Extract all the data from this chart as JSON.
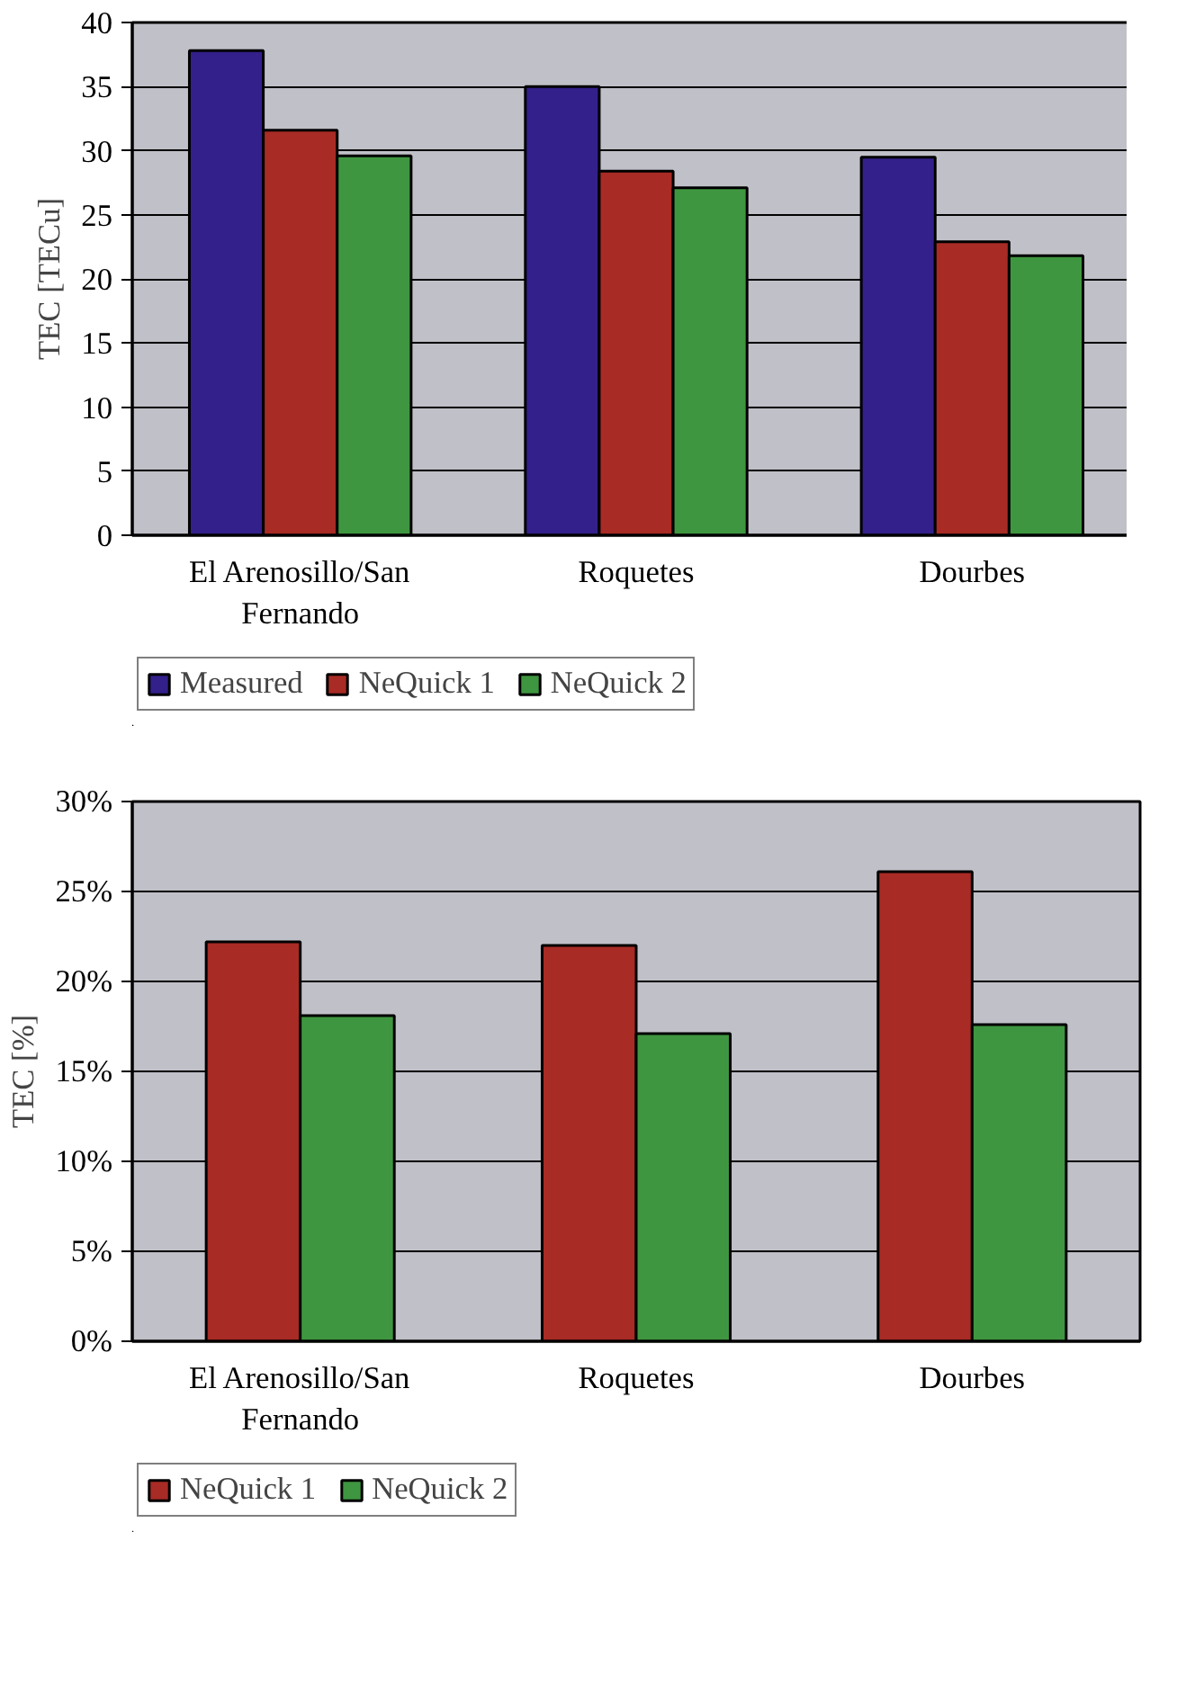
{
  "chart_data": [
    {
      "type": "bar",
      "ylabel": "TEC [TECu]",
      "categories": [
        "El Arenosillo/San Fernando",
        "Roquetes",
        "Dourbes"
      ],
      "series": [
        {
          "name": "Measured",
          "color": "#33208a",
          "values": [
            37.8,
            35.0,
            29.5
          ]
        },
        {
          "name": "NeQuick 1",
          "color": "#a82b25",
          "values": [
            31.6,
            28.4,
            22.9
          ]
        },
        {
          "name": "NeQuick 2",
          "color": "#3f9640",
          "values": [
            29.6,
            27.1,
            21.8
          ]
        }
      ],
      "ylim": [
        0,
        40
      ],
      "yticks": [
        0,
        5,
        10,
        15,
        20,
        25,
        30,
        35,
        40
      ],
      "grid": "y",
      "legend": "bottom"
    },
    {
      "type": "bar",
      "ylabel": "TEC [%]",
      "categories": [
        "El Arenosillo/San Fernando",
        "Roquetes",
        "Dourbes"
      ],
      "series": [
        {
          "name": "NeQuick 1",
          "color": "#a82b25",
          "values": [
            22.2,
            22.0,
            26.1
          ]
        },
        {
          "name": "NeQuick 2",
          "color": "#3f9640",
          "values": [
            18.1,
            17.1,
            17.6
          ]
        }
      ],
      "ylim": [
        0,
        30
      ],
      "yticks": [
        {
          "value": 0,
          "label": "0%"
        },
        {
          "value": 5,
          "label": "5%"
        },
        {
          "value": 10,
          "label": "10%"
        },
        {
          "value": 15,
          "label": "15%"
        },
        {
          "value": 20,
          "label": "20%"
        },
        {
          "value": 25,
          "label": "25%"
        },
        {
          "value": 30,
          "label": "30%"
        }
      ],
      "grid": "y",
      "legend": "bottom"
    }
  ]
}
